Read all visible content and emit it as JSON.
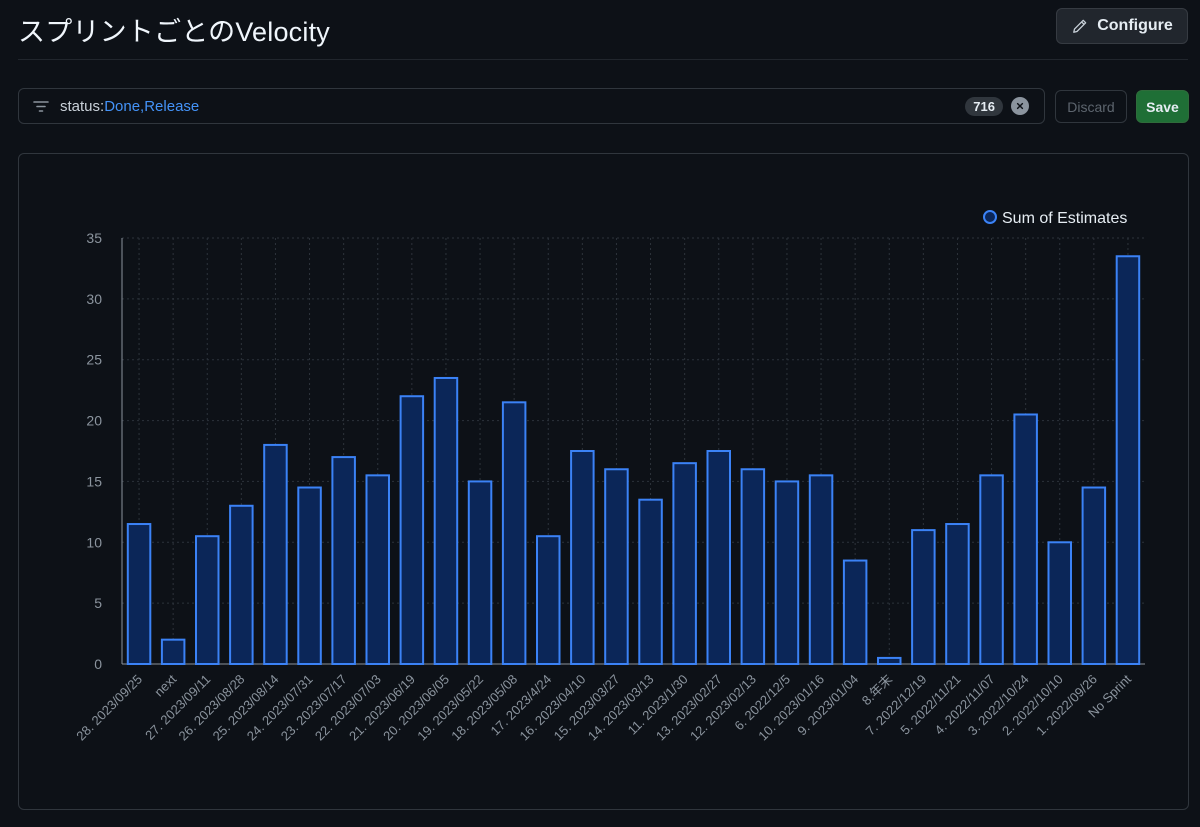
{
  "header": {
    "title": "スプリントごとのVelocity",
    "configure_label": "Configure"
  },
  "filter": {
    "key": "status:",
    "value": "Done,Release",
    "count": "716",
    "discard_label": "Discard",
    "save_label": "Save"
  },
  "colors": {
    "bar_fill": "#0b2658",
    "bar_stroke": "#3b82f6",
    "grid": "#2d333b",
    "tick_text": "#8b949e"
  },
  "chart_data": {
    "type": "bar",
    "title": "",
    "xlabel": "",
    "ylabel": "",
    "ylim": [
      0,
      35
    ],
    "yticks": [
      0,
      5,
      10,
      15,
      20,
      25,
      30,
      35
    ],
    "grid": true,
    "legend_position": "top-right",
    "categories": [
      "28. 2023/09/25",
      "next",
      "27. 2023/09/11",
      "26. 2023/08/28",
      "25. 2023/08/14",
      "24. 2023/07/31",
      "23. 2023/07/17",
      "22. 2023/07/03",
      "21. 2023/06/19",
      "20. 2023/06/05",
      "19. 2023/05/22",
      "18. 2023/05/08",
      "17. 2023/4/24",
      "16. 2023/04/10",
      "15. 2023/03/27",
      "14. 2023/03/13",
      "11. 2023/1/30",
      "13. 2023/02/27",
      "12. 2023/02/13",
      "6. 2022/12/5",
      "10. 2023/01/16",
      "9. 2023/01/04",
      "8.年末",
      "7. 2022/12/19",
      "5. 2022/11/21",
      "4. 2022/11/07",
      "3. 2022/10/24",
      "2. 2022/10/10",
      "1. 2022/09/26",
      "No Sprint"
    ],
    "series": [
      {
        "name": "Sum of Estimates",
        "values": [
          11.5,
          2,
          10.5,
          13,
          18,
          14.5,
          17,
          15.5,
          22,
          23.5,
          15,
          21.5,
          10.5,
          17.5,
          16,
          13.5,
          16.5,
          17.5,
          16,
          15,
          15.5,
          8.5,
          0.5,
          11,
          11.5,
          15.5,
          20.5,
          10,
          14.5,
          33.5
        ]
      }
    ]
  }
}
